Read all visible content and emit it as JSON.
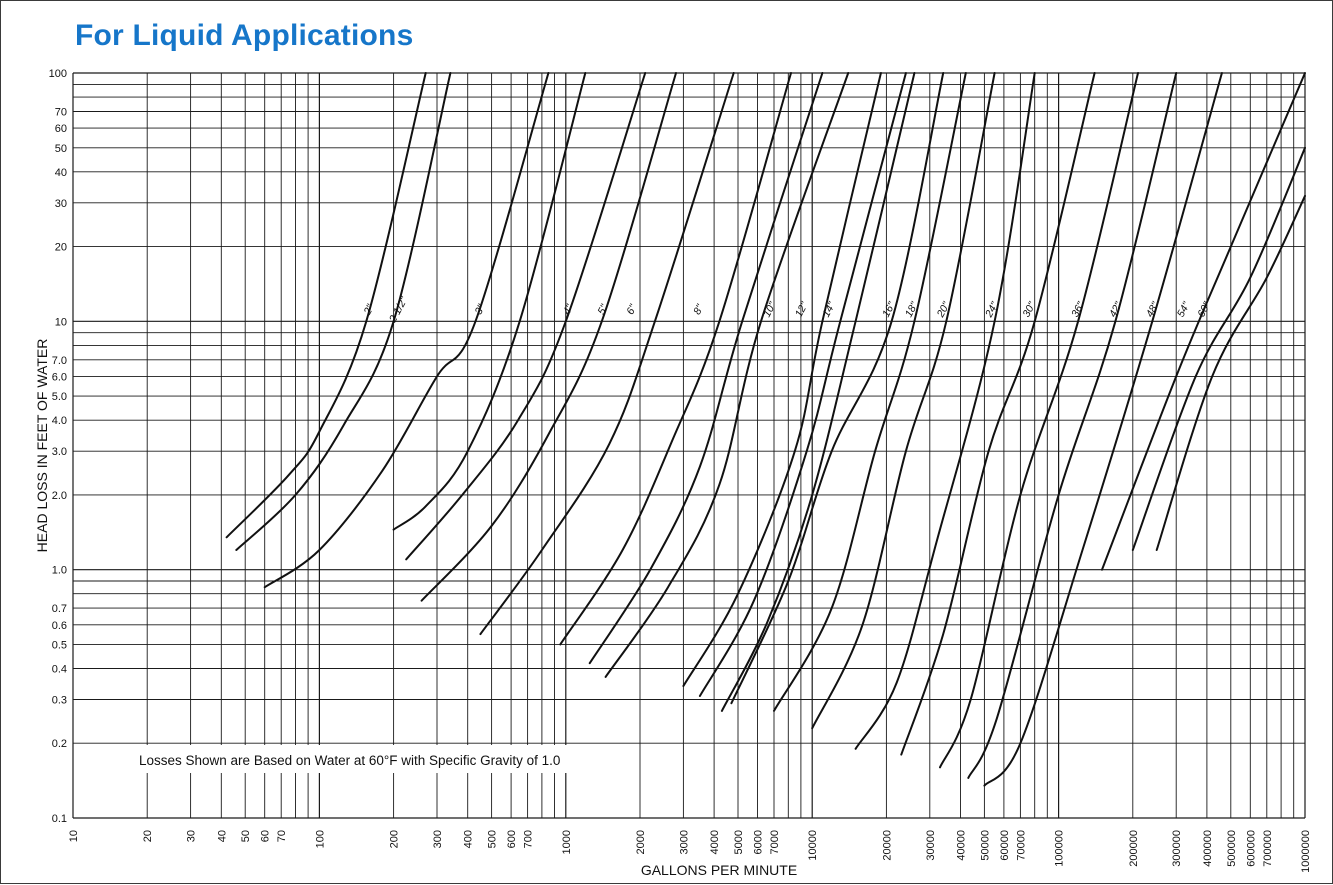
{
  "colors": {
    "title": "#1676c9",
    "ink": "#111111",
    "grid": "#1a1a1a"
  },
  "title": "For Liquid Applications",
  "chart_data": {
    "type": "line",
    "title": "For Liquid Applications",
    "xlabel": "GALLONS PER MINUTE",
    "ylabel": "HEAD LOSS IN FEET OF WATER",
    "xscale": "log",
    "yscale": "log",
    "xlim": [
      10,
      1000000
    ],
    "ylim": [
      0.1,
      100
    ],
    "grid": true,
    "note": "Losses Shown are Based on Water at 60°F with Specific Gravity of 1.0",
    "x_tick_labels": [
      {
        "v": 10,
        "t": "10"
      },
      {
        "v": 20,
        "t": "20"
      },
      {
        "v": 30,
        "t": "30"
      },
      {
        "v": 40,
        "t": "40"
      },
      {
        "v": 50,
        "t": "50"
      },
      {
        "v": 60,
        "t": "60"
      },
      {
        "v": 70,
        "t": "70"
      },
      {
        "v": 100,
        "t": "100"
      },
      {
        "v": 200,
        "t": "200"
      },
      {
        "v": 300,
        "t": "300"
      },
      {
        "v": 400,
        "t": "400"
      },
      {
        "v": 500,
        "t": "500"
      },
      {
        "v": 600,
        "t": "600"
      },
      {
        "v": 700,
        "t": "700"
      },
      {
        "v": 1000,
        "t": "1000"
      },
      {
        "v": 2000,
        "t": "2000"
      },
      {
        "v": 3000,
        "t": "3000"
      },
      {
        "v": 4000,
        "t": "4000"
      },
      {
        "v": 5000,
        "t": "5000"
      },
      {
        "v": 6000,
        "t": "6000"
      },
      {
        "v": 7000,
        "t": "7000"
      },
      {
        "v": 10000,
        "t": "10000"
      },
      {
        "v": 20000,
        "t": "20000"
      },
      {
        "v": 30000,
        "t": "30000"
      },
      {
        "v": 40000,
        "t": "40000"
      },
      {
        "v": 50000,
        "t": "50000"
      },
      {
        "v": 60000,
        "t": "60000"
      },
      {
        "v": 70000,
        "t": "70000"
      },
      {
        "v": 100000,
        "t": "100000"
      },
      {
        "v": 200000,
        "t": "200000"
      },
      {
        "v": 300000,
        "t": "300000"
      },
      {
        "v": 400000,
        "t": "400000"
      },
      {
        "v": 500000,
        "t": "500000"
      },
      {
        "v": 600000,
        "t": "600000"
      },
      {
        "v": 700000,
        "t": "700000"
      },
      {
        "v": 1000000,
        "t": "1000000"
      }
    ],
    "y_tick_labels": [
      {
        "v": 0.1,
        "t": "0.1"
      },
      {
        "v": 0.2,
        "t": "0.2"
      },
      {
        "v": 0.3,
        "t": "0.3"
      },
      {
        "v": 0.4,
        "t": "0.4"
      },
      {
        "v": 0.5,
        "t": "0.5"
      },
      {
        "v": 0.6,
        "t": "0.6"
      },
      {
        "v": 0.7,
        "t": "0.7"
      },
      {
        "v": 1.0,
        "t": "1.0"
      },
      {
        "v": 2.0,
        "t": "2.0"
      },
      {
        "v": 3.0,
        "t": "3.0"
      },
      {
        "v": 4.0,
        "t": "4.0"
      },
      {
        "v": 5.0,
        "t": "5.0"
      },
      {
        "v": 6.0,
        "t": "6.0"
      },
      {
        "v": 7.0,
        "t": "7.0"
      },
      {
        "v": 10,
        "t": "10"
      },
      {
        "v": 20,
        "t": "20"
      },
      {
        "v": 30,
        "t": "30"
      },
      {
        "v": 40,
        "t": "40"
      },
      {
        "v": 50,
        "t": "50"
      },
      {
        "v": 60,
        "t": "60"
      },
      {
        "v": 70,
        "t": "70"
      },
      {
        "v": 100,
        "t": "100"
      }
    ],
    "series": [
      {
        "name": "2\"",
        "points": [
          [
            42,
            1.35
          ],
          [
            75,
            2.4
          ],
          [
            100,
            3.6
          ],
          [
            155,
            10
          ],
          [
            270,
            100
          ]
        ]
      },
      {
        "name": "2 1/2\"",
        "points": [
          [
            46,
            1.2
          ],
          [
            80,
            2.0
          ],
          [
            125,
            3.8
          ],
          [
            200,
            10
          ],
          [
            340,
            100
          ]
        ]
      },
      {
        "name": "3\"",
        "points": [
          [
            60,
            0.85
          ],
          [
            100,
            1.2
          ],
          [
            180,
            2.5
          ],
          [
            300,
            6.0
          ],
          [
            430,
            10
          ],
          [
            850,
            100
          ]
        ]
      },
      {
        "name": "3\"",
        "points": [
          [
            200,
            1.45
          ],
          [
            270,
            1.8
          ],
          [
            400,
            3.0
          ],
          [
            650,
            10
          ],
          [
            1200,
            100
          ]
        ]
      },
      {
        "name": "4\"",
        "points": [
          [
            225,
            1.1
          ],
          [
            380,
            2.0
          ],
          [
            640,
            4.0
          ],
          [
            1000,
            10
          ],
          [
            2100,
            100
          ]
        ]
      },
      {
        "name": "5\"",
        "points": [
          [
            260,
            0.75
          ],
          [
            500,
            1.5
          ],
          [
            850,
            3.5
          ],
          [
            1400,
            10
          ],
          [
            2800,
            100
          ]
        ]
      },
      {
        "name": "6\"",
        "points": [
          [
            450,
            0.55
          ],
          [
            800,
            1.2
          ],
          [
            1500,
            3.2
          ],
          [
            2300,
            10
          ],
          [
            4800,
            100
          ]
        ]
      },
      {
        "name": "8\"",
        "points": [
          [
            950,
            0.5
          ],
          [
            1700,
            1.2
          ],
          [
            2700,
            3.3
          ],
          [
            4200,
            10
          ],
          [
            8200,
            100
          ]
        ]
      },
      {
        "name": "8\"",
        "points": [
          [
            1250,
            0.42
          ],
          [
            2200,
            1.0
          ],
          [
            3500,
            2.6
          ],
          [
            5200,
            10
          ],
          [
            11000,
            100
          ]
        ]
      },
      {
        "name": "10\"",
        "points": [
          [
            1450,
            0.37
          ],
          [
            2600,
            0.85
          ],
          [
            4200,
            2.2
          ],
          [
            6200,
            10
          ],
          [
            14000,
            100
          ]
        ]
      },
      {
        "name": "12\"",
        "points": [
          [
            3000,
            0.34
          ],
          [
            5000,
            0.8
          ],
          [
            8500,
            3.0
          ],
          [
            11000,
            10
          ],
          [
            19000,
            100
          ]
        ]
      },
      {
        "name": "14\"",
        "points": [
          [
            3500,
            0.31
          ],
          [
            5800,
            0.75
          ],
          [
            9500,
            3.0
          ],
          [
            13000,
            10
          ],
          [
            24000,
            100
          ]
        ]
      },
      {
        "name": "16\"",
        "points": [
          [
            4300,
            0.27
          ],
          [
            6600,
            0.62
          ],
          [
            10000,
            2.0
          ],
          [
            15000,
            10
          ],
          [
            26000,
            100
          ]
        ]
      },
      {
        "name": "16\"",
        "points": [
          [
            4700,
            0.29
          ],
          [
            8000,
            0.9
          ],
          [
            12000,
            3.0
          ],
          [
            21000,
            10
          ],
          [
            34000,
            100
          ]
        ]
      },
      {
        "name": "18\"",
        "points": [
          [
            7000,
            0.27
          ],
          [
            12000,
            0.7
          ],
          [
            18000,
            3.0
          ],
          [
            26000,
            10
          ],
          [
            42000,
            100
          ]
        ]
      },
      {
        "name": "20\"",
        "points": [
          [
            10000,
            0.23
          ],
          [
            16000,
            0.6
          ],
          [
            24000,
            3.0
          ],
          [
            35000,
            10
          ],
          [
            55000,
            100
          ]
        ]
      },
      {
        "name": "24\"",
        "points": [
          [
            15000,
            0.19
          ],
          [
            22000,
            0.35
          ],
          [
            32000,
            1.3
          ],
          [
            55000,
            10
          ],
          [
            80000,
            100
          ]
        ]
      },
      {
        "name": "30\"",
        "points": [
          [
            23000,
            0.18
          ],
          [
            34000,
            0.55
          ],
          [
            52000,
            3.0
          ],
          [
            80000,
            10
          ],
          [
            140000,
            100
          ]
        ]
      },
      {
        "name": "36\"",
        "points": [
          [
            33000,
            0.16
          ],
          [
            44000,
            0.3
          ],
          [
            70000,
            2.0
          ],
          [
            120000,
            10
          ],
          [
            210000,
            100
          ]
        ]
      },
      {
        "name": "42\"",
        "points": [
          [
            43000,
            0.145
          ],
          [
            56000,
            0.25
          ],
          [
            100000,
            2.0
          ],
          [
            170000,
            10
          ],
          [
            300000,
            100
          ]
        ]
      },
      {
        "name": "48\"",
        "points": [
          [
            50000,
            0.135
          ],
          [
            70000,
            0.2
          ],
          [
            125000,
            1.2
          ],
          [
            240000,
            10
          ],
          [
            460000,
            100
          ]
        ]
      },
      {
        "name": "54\"",
        "points": [
          [
            150000,
            1.0
          ],
          [
            300000,
            6.0
          ],
          [
            500000,
            20
          ],
          [
            1000000,
            100
          ]
        ]
      },
      {
        "name": "60\"",
        "points": [
          [
            200000,
            1.2
          ],
          [
            360000,
            6.0
          ],
          [
            600000,
            15
          ],
          [
            1000000,
            50
          ]
        ]
      },
      {
        "name": "",
        "points": [
          [
            250000,
            1.2
          ],
          [
            420000,
            6.0
          ],
          [
            700000,
            15
          ],
          [
            1000000,
            32
          ]
        ]
      }
    ],
    "curve_labels": [
      {
        "text": "2\"",
        "x": 163,
        "y": 11
      },
      {
        "text": "2 1/2\"",
        "x": 215,
        "y": 11
      },
      {
        "text": "3\"",
        "x": 460,
        "y": 11
      },
      {
        "text": "4\"",
        "x": 1050,
        "y": 11
      },
      {
        "text": "5\"",
        "x": 1450,
        "y": 11
      },
      {
        "text": "6\"",
        "x": 1900,
        "y": 11
      },
      {
        "text": "8\"",
        "x": 3550,
        "y": 11
      },
      {
        "text": "10\"",
        "x": 6900,
        "y": 11
      },
      {
        "text": "12\"",
        "x": 9300,
        "y": 11
      },
      {
        "text": "14\"",
        "x": 12000,
        "y": 11
      },
      {
        "text": "16\"",
        "x": 21000,
        "y": 11
      },
      {
        "text": "18\"",
        "x": 26000,
        "y": 11
      },
      {
        "text": "20\"",
        "x": 35000,
        "y": 11
      },
      {
        "text": "24\"",
        "x": 55000,
        "y": 11
      },
      {
        "text": "30\"",
        "x": 78000,
        "y": 11
      },
      {
        "text": "36\"",
        "x": 123000,
        "y": 11
      },
      {
        "text": "42\"",
        "x": 175000,
        "y": 11
      },
      {
        "text": "48\"",
        "x": 247000,
        "y": 11
      },
      {
        "text": "54\"",
        "x": 330000,
        "y": 11
      },
      {
        "text": "60\"",
        "x": 400000,
        "y": 11
      }
    ]
  }
}
